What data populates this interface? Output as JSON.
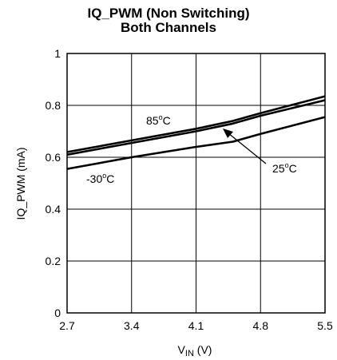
{
  "chart_data": {
    "type": "line",
    "title": "IQ_PWM (Non Switching)",
    "subtitle": "Both Channels",
    "xlabel_main": "V",
    "xlabel_sub": "IN",
    "xlabel_unit": " (V)",
    "ylabel": "IQ_PWM (mA)",
    "xlim": [
      2.7,
      5.5
    ],
    "ylim": [
      0,
      1
    ],
    "xticks": [
      "2.7",
      "3.4",
      "4.1",
      "4.8",
      "5.5"
    ],
    "yticks": [
      "0",
      "0.2",
      "0.4",
      "0.6",
      "0.8",
      "1"
    ],
    "grid": true,
    "series": [
      {
        "name": "85°C",
        "x": [
          2.7,
          3.4,
          4.1,
          4.5,
          4.8,
          5.5
        ],
        "values": [
          0.62,
          0.665,
          0.71,
          0.74,
          0.77,
          0.835
        ]
      },
      {
        "name": "25°C",
        "x": [
          2.7,
          3.4,
          4.1,
          4.5,
          4.8,
          5.5
        ],
        "values": [
          0.61,
          0.655,
          0.7,
          0.73,
          0.76,
          0.82
        ]
      },
      {
        "name": "-30°C",
        "x": [
          2.7,
          3.4,
          4.1,
          4.5,
          4.8,
          5.5
        ],
        "values": [
          0.555,
          0.6,
          0.64,
          0.66,
          0.69,
          0.755
        ]
      }
    ],
    "annotations": [
      {
        "text": "85",
        "deg": "o",
        "unit": "C"
      },
      {
        "text": "25",
        "deg": "o",
        "unit": "C"
      },
      {
        "text": "-30",
        "deg": "o",
        "unit": "C"
      }
    ],
    "line_color": "#000000"
  }
}
